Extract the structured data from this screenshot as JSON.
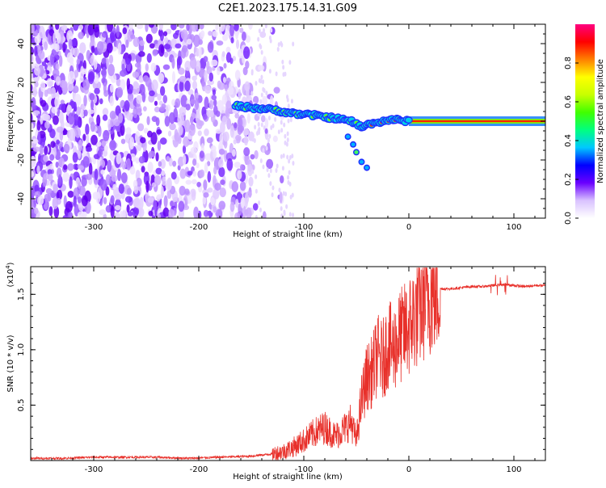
{
  "title": "C2E1.2023.175.14.31.G09",
  "chart_data": [
    {
      "type": "heatmap",
      "xlabel": "Height of straight line (km)",
      "ylabel": "Frequency (Hz)",
      "xlim": [
        -360,
        130
      ],
      "ylim": [
        -50,
        50
      ],
      "x_ticks": [
        -300,
        -200,
        -100,
        0,
        100
      ],
      "y_ticks": [
        -40,
        -20,
        0,
        20,
        40
      ],
      "colorbar": {
        "label": "Normalized spectral amplitude",
        "range": [
          0,
          1
        ],
        "ticks": [
          "0.0",
          "0.2",
          "0.4",
          "0.6",
          "0.8"
        ],
        "tick_values": [
          0.0,
          0.2,
          0.4,
          0.6,
          0.8
        ],
        "colors": [
          "#ffffff",
          "#d9c2ff",
          "#6a00ff",
          "#0000ff",
          "#00c8ff",
          "#00ff80",
          "#40ff00",
          "#c8ff00",
          "#ffff00",
          "#ff8000",
          "#ff0000",
          "#ff0080"
        ]
      },
      "ridge": {
        "x": [
          -165,
          -150,
          -130,
          -110,
          -90,
          -70,
          -55,
          -45,
          -35,
          -25,
          -15,
          -5,
          0,
          130
        ],
        "y": [
          8,
          7,
          6,
          4,
          3,
          1.5,
          0,
          -3,
          -1,
          0,
          1,
          0,
          0,
          0
        ]
      },
      "branch": {
        "x": [
          -58,
          -53,
          -50,
          -45,
          -40
        ],
        "y": [
          -8,
          -12,
          -16,
          -21,
          -24
        ]
      },
      "noise_region_x": [
        -360,
        -150
      ]
    },
    {
      "type": "line",
      "xlabel": "Height of straight line (km)",
      "ylabel": "SNR (10 * v/v)",
      "y_scale_label": "(x10",
      "y_scale_exp": "4",
      "y_scale_close": ")",
      "xlim": [
        -360,
        130
      ],
      "ylim": [
        0.0,
        1.75
      ],
      "x_ticks": [
        -300,
        -200,
        -100,
        0,
        100
      ],
      "y_ticks": [
        0.5,
        1.0,
        1.5
      ],
      "y_tick_labels": [
        "0.5",
        "1.0",
        "1.5"
      ],
      "color": "#e8302a",
      "series": [
        {
          "x": [
            -360,
            -330,
            -300,
            -270,
            -240,
            -210,
            -180,
            -150,
            -130,
            -120,
            -110,
            -100,
            -90,
            -80,
            -70,
            -60,
            -55,
            -50,
            -45,
            -40,
            -35,
            -30,
            -25,
            -20,
            -15,
            -10,
            -5,
            0,
            5,
            10,
            15,
            20,
            25,
            30,
            40,
            50,
            60,
            70,
            80,
            90,
            100,
            110,
            120,
            130
          ],
          "y": [
            0.02,
            0.02,
            0.03,
            0.03,
            0.03,
            0.02,
            0.03,
            0.04,
            0.06,
            0.08,
            0.12,
            0.18,
            0.25,
            0.3,
            0.22,
            0.3,
            0.35,
            0.18,
            0.55,
            0.75,
            0.8,
            0.95,
            0.9,
            1.05,
            1.0,
            1.1,
            1.15,
            1.2,
            1.3,
            1.35,
            1.45,
            1.5,
            1.52,
            1.55,
            1.55,
            1.56,
            1.57,
            1.57,
            1.58,
            1.59,
            1.58,
            1.57,
            1.58,
            1.58
          ]
        }
      ]
    }
  ]
}
